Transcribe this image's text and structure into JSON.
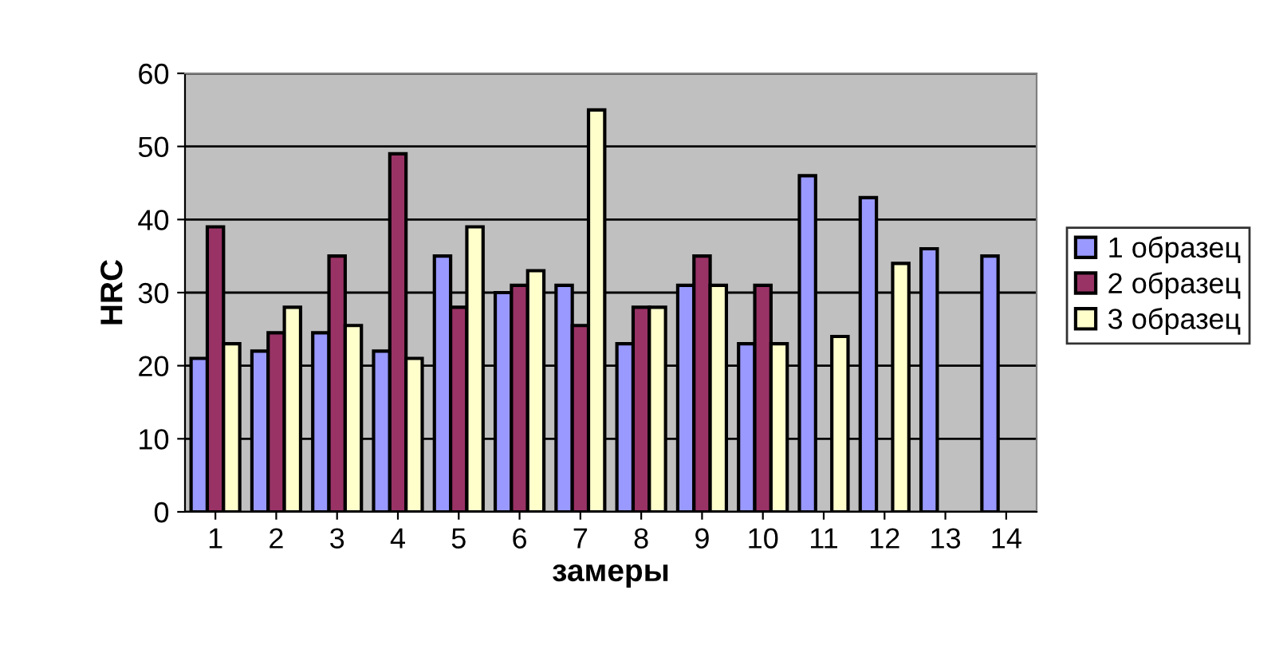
{
  "chart_data": {
    "type": "bar",
    "xlabel": "замеры",
    "ylabel": "HRC",
    "categories": [
      "1",
      "2",
      "3",
      "4",
      "5",
      "6",
      "7",
      "8",
      "9",
      "10",
      "11",
      "12",
      "13",
      "14"
    ],
    "series": [
      {
        "name": "1 образец",
        "color": "#9999ff",
        "values": [
          21,
          22,
          24.5,
          22,
          35,
          30,
          31,
          23,
          31,
          23,
          46,
          43,
          36,
          35
        ]
      },
      {
        "name": "2 образец",
        "color": "#993366",
        "values": [
          39,
          24.5,
          35,
          49,
          28,
          31,
          25.5,
          28,
          35,
          31,
          null,
          null,
          null,
          null
        ]
      },
      {
        "name": "3 образец",
        "color": "#ffffcc",
        "values": [
          23,
          28,
          25.5,
          21,
          39,
          33,
          55,
          28,
          31,
          23,
          24,
          34,
          null,
          null
        ]
      }
    ],
    "ylim": [
      0,
      60
    ],
    "yticks": [
      0,
      10,
      20,
      30,
      40,
      50,
      60
    ],
    "grid": "y",
    "legend": "right"
  }
}
